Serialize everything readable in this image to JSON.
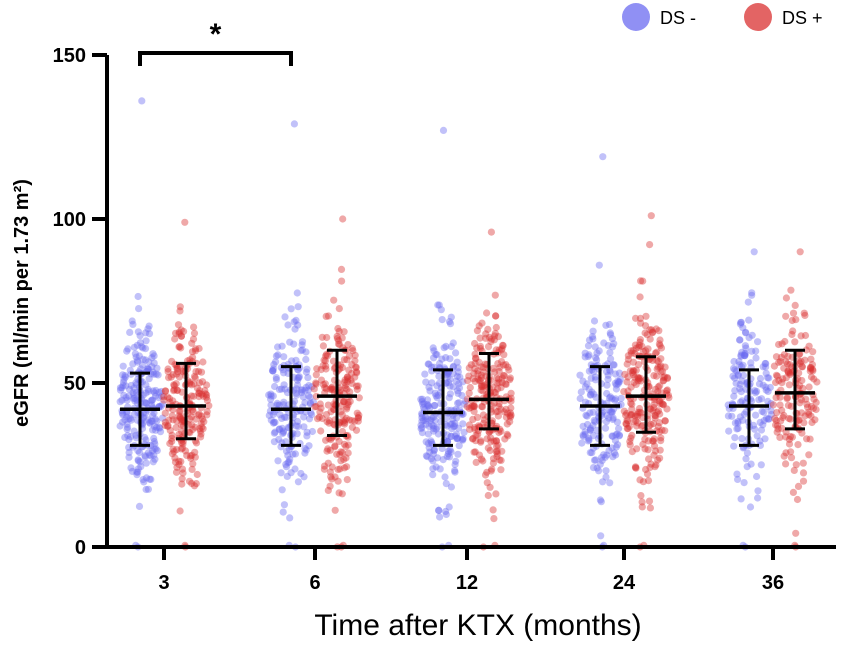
{
  "chart_data": {
    "type": "scatter",
    "title": "",
    "xlabel": "Time after KTX (months)",
    "ylabel": "eGFR (ml/min per 1.73 m²)",
    "ylim": [
      0,
      150
    ],
    "yticks": [
      0,
      50,
      100,
      150
    ],
    "categories": [
      "3",
      "6",
      "12",
      "24",
      "36"
    ],
    "legend": {
      "position": "top-right"
    },
    "series": [
      {
        "name": "DS -",
        "color": "#6b6bf0",
        "mean": [
          42,
          42,
          41,
          43,
          43
        ],
        "sd_low": [
          31,
          31,
          31,
          31,
          31
        ],
        "sd_high": [
          53,
          55,
          54,
          55,
          54
        ],
        "max_points": [
          136,
          129,
          127,
          119,
          90
        ],
        "n_points": [
          230,
          180,
          210,
          170,
          150
        ]
      },
      {
        "name": "DS +",
        "color": "#d93030",
        "mean": [
          43,
          46,
          45,
          46,
          47
        ],
        "sd_low": [
          33,
          34,
          36,
          35,
          36
        ],
        "sd_high": [
          56,
          60,
          59,
          58,
          60
        ],
        "max_points": [
          99,
          100,
          96,
          101,
          90
        ],
        "n_points": [
          210,
          200,
          230,
          230,
          160
        ]
      }
    ],
    "annotations": [
      {
        "text": "*",
        "from_category": "3",
        "to_category": "6",
        "series": "DS -"
      }
    ]
  },
  "legend_items": [
    {
      "label": "DS -",
      "color": "#6b6bf0"
    },
    {
      "label": "DS +",
      "color": "#d93030"
    }
  ]
}
